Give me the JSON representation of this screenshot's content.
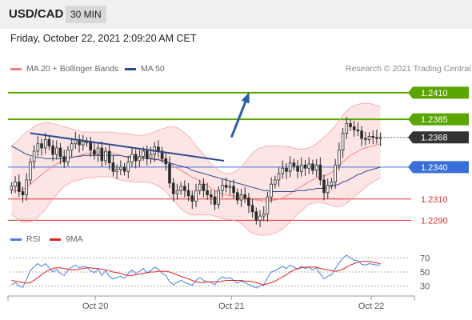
{
  "header": {
    "pair": "USD/CAD",
    "timeframe": "30 MIN"
  },
  "datetime": "Friday, October 22, 2021 2:09:20 AM CET",
  "legend": {
    "bb_label": "MA 20 + Bollinger Bands",
    "ma50_label": "MA 50",
    "rsi_label": "RSI",
    "rsi_ma_label": "9MA",
    "credit": "Research © 2021 Trading Central"
  },
  "colors": {
    "bb": "#f08080",
    "ma50": "#2b4a8a",
    "band_fill": "#fde0e0",
    "green": "#5aa500",
    "blue_level": "#3a6fd8",
    "red_level": "#e03030",
    "candle_up": "#2a2a2a",
    "candle_down": "#2a2a2a",
    "rsi": "#4a7fe0",
    "rsi_ma": "#e02020",
    "arrow": "#2b5fa8",
    "current": "#333333"
  },
  "chart_data": [
    {
      "type": "candlestick",
      "title": "USD/CAD 30 MIN",
      "ylim": [
        1.2282,
        1.2425
      ],
      "x_ticks": [
        "Oct 20",
        "Oct 21",
        "Oct 22"
      ],
      "levels": [
        {
          "value": 1.241,
          "label": "1.2410",
          "kind": "resistance",
          "color": "green",
          "weight": 2
        },
        {
          "value": 1.2385,
          "label": "1.2385",
          "kind": "resistance",
          "color": "green",
          "weight": 2
        },
        {
          "value": 1.2368,
          "label": "1.2368",
          "kind": "current price",
          "color": "current",
          "weight": 1
        },
        {
          "value": 1.234,
          "label": "1.2340",
          "kind": "pivot",
          "color": "blue_level",
          "weight": 1
        },
        {
          "value": 1.231,
          "label": "1.2310",
          "kind": "support",
          "color": "red_level",
          "weight": 1
        },
        {
          "value": 1.229,
          "label": "1.2290",
          "kind": "support",
          "color": "red_level",
          "weight": 1
        }
      ],
      "trendline": {
        "from": [
          0.055,
          1.2372
        ],
        "to": [
          0.575,
          1.2346
        ]
      },
      "forecast_arrow": {
        "from": [
          0.595,
          1.2368
        ],
        "to": [
          0.64,
          1.2408
        ]
      },
      "close": [
        1.2322,
        1.2326,
        1.2317,
        1.2314,
        1.2328,
        1.2345,
        1.2355,
        1.2362,
        1.2358,
        1.2366,
        1.236,
        1.2352,
        1.2358,
        1.235,
        1.2345,
        1.2356,
        1.2362,
        1.2366,
        1.2361,
        1.2364,
        1.2363,
        1.2356,
        1.2352,
        1.2358,
        1.2346,
        1.2355,
        1.2344,
        1.2336,
        1.2338,
        1.234,
        1.2336,
        1.2345,
        1.2352,
        1.2346,
        1.235,
        1.2355,
        1.2348,
        1.2352,
        1.2359,
        1.2355,
        1.2348,
        1.2343,
        1.2325,
        1.2315,
        1.2318,
        1.2322,
        1.2318,
        1.2313,
        1.2308,
        1.2318,
        1.2324,
        1.2318,
        1.2314,
        1.2312,
        1.2305,
        1.2318,
        1.2323,
        1.2321,
        1.2322,
        1.2316,
        1.2309,
        1.2314,
        1.2311,
        1.2304,
        1.2298,
        1.229,
        1.2294,
        1.2296,
        1.2312,
        1.2324,
        1.2328,
        1.2334,
        1.2339,
        1.2336,
        1.2344,
        1.2341,
        1.2336,
        1.2342,
        1.2339,
        1.2343,
        1.2337,
        1.2342,
        1.2328,
        1.2316,
        1.2323,
        1.2326,
        1.2342,
        1.2356,
        1.2372,
        1.2381,
        1.2378,
        1.2375,
        1.2374,
        1.2367,
        1.2366,
        1.2369,
        1.2368,
        1.2367,
        1.2368
      ],
      "ma20": [
        1.2318,
        1.2318,
        1.2318,
        1.2319,
        1.2321,
        1.2324,
        1.2327,
        1.233,
        1.2333,
        1.2336,
        1.2338,
        1.2341,
        1.2343,
        1.2345,
        1.2347,
        1.2348,
        1.2349,
        1.235,
        1.2351,
        1.2352,
        1.2353,
        1.2353,
        1.2354,
        1.2354,
        1.2354,
        1.2354,
        1.2354,
        1.2353,
        1.2352,
        1.2351,
        1.235,
        1.2349,
        1.2349,
        1.2348,
        1.2348,
        1.2348,
        1.2349,
        1.2348,
        1.2348,
        1.2348,
        1.2347,
        1.2346,
        1.2344,
        1.2341,
        1.2339,
        1.2337,
        1.2335,
        1.2333,
        1.233,
        1.2329,
        1.2327,
        1.2325,
        1.2323,
        1.232,
        1.2318,
        1.2316,
        1.2315,
        1.2314,
        1.2313,
        1.2313,
        1.2312,
        1.2311,
        1.2311,
        1.2311,
        1.231,
        1.2309,
        1.2309,
        1.2308,
        1.2308,
        1.2309,
        1.2309,
        1.231,
        1.2311,
        1.2313,
        1.2315,
        1.2318,
        1.232,
        1.2322,
        1.2324,
        1.2326,
        1.2328,
        1.233,
        1.2331,
        1.2332,
        1.2333,
        1.2335,
        1.2338,
        1.2341,
        1.2345,
        1.2348,
        1.2351,
        1.2353,
        1.2355,
        1.2357,
        1.2358,
        1.2359,
        1.236,
        1.2361,
        1.2362
      ],
      "ma50": [
        1.236,
        1.2358,
        1.2356,
        1.2354,
        1.2352,
        1.2351,
        1.235,
        1.2349,
        1.2349,
        1.2348,
        1.2348,
        1.2348,
        1.2348,
        1.2348,
        1.2349,
        1.2349,
        1.2349,
        1.235,
        1.235,
        1.2351,
        1.2351,
        1.2351,
        1.2351,
        1.2351,
        1.2351,
        1.2351,
        1.2351,
        1.2351,
        1.2351,
        1.2351,
        1.235,
        1.235,
        1.235,
        1.2349,
        1.2349,
        1.2349,
        1.2348,
        1.2348,
        1.2347,
        1.2347,
        1.2346,
        1.2345,
        1.2344,
        1.2343,
        1.2342,
        1.2341,
        1.234,
        1.2339,
        1.2337,
        1.2336,
        1.2335,
        1.2334,
        1.2333,
        1.2332,
        1.2331,
        1.233,
        1.2329,
        1.2328,
        1.2327,
        1.2326,
        1.2325,
        1.2324,
        1.2323,
        1.2322,
        1.2321,
        1.232,
        1.2319,
        1.2318,
        1.2318,
        1.2317,
        1.2317,
        1.2317,
        1.2317,
        1.2317,
        1.2317,
        1.2317,
        1.2318,
        1.2318,
        1.2318,
        1.2319,
        1.2319,
        1.232,
        1.232,
        1.232,
        1.2321,
        1.2322,
        1.2323,
        1.2324,
        1.2326,
        1.2327,
        1.2329,
        1.2331,
        1.2333,
        1.2334,
        1.2336,
        1.2337,
        1.2338,
        1.2339,
        1.234
      ],
      "bb_upper": [
        1.236,
        1.2363,
        1.2366,
        1.237,
        1.2373,
        1.2375,
        1.2378,
        1.238,
        1.2381,
        1.2382,
        1.2382,
        1.2381,
        1.238,
        1.2379,
        1.2378,
        1.2377,
        1.2376,
        1.2375,
        1.2374,
        1.2373,
        1.2373,
        1.2373,
        1.2373,
        1.2373,
        1.2373,
        1.2373,
        1.2373,
        1.2373,
        1.2372,
        1.2372,
        1.2372,
        1.2371,
        1.2371,
        1.237,
        1.237,
        1.237,
        1.2371,
        1.2372,
        1.2373,
        1.2375,
        1.2376,
        1.2377,
        1.2378,
        1.2378,
        1.2377,
        1.2375,
        1.2372,
        1.2369,
        1.2365,
        1.236,
        1.2356,
        1.2352,
        1.2347,
        1.2343,
        1.234,
        1.2337,
        1.2335,
        1.2334,
        1.2334,
        1.2335,
        1.2337,
        1.234,
        1.2344,
        1.2349,
        1.2353,
        1.2356,
        1.2358,
        1.2359,
        1.236,
        1.236,
        1.236,
        1.236,
        1.236,
        1.2359,
        1.2359,
        1.2358,
        1.2357,
        1.2357,
        1.2357,
        1.2358,
        1.236,
        1.2362,
        1.2365,
        1.2368,
        1.2371,
        1.2375,
        1.2379,
        1.2384,
        1.2389,
        1.2393,
        1.2396,
        1.2398,
        1.2399,
        1.24,
        1.24,
        1.24,
        1.2399,
        1.2398,
        1.2397
      ],
      "bb_lower": [
        1.2296,
        1.2293,
        1.229,
        1.2288,
        1.2288,
        1.2289,
        1.229,
        1.2293,
        1.2296,
        1.23,
        1.2305,
        1.231,
        1.2314,
        1.2318,
        1.2322,
        1.2324,
        1.2326,
        1.2327,
        1.2328,
        1.2329,
        1.233,
        1.233,
        1.233,
        1.2331,
        1.2331,
        1.2331,
        1.2331,
        1.233,
        1.2329,
        1.2328,
        1.2327,
        1.2327,
        1.2326,
        1.2326,
        1.2326,
        1.2326,
        1.2326,
        1.2325,
        1.2324,
        1.2322,
        1.232,
        1.2317,
        1.2313,
        1.2309,
        1.2305,
        1.2301,
        1.2298,
        1.2296,
        1.2295,
        1.2295,
        1.2295,
        1.2295,
        1.2295,
        1.2295,
        1.2294,
        1.2293,
        1.2292,
        1.2291,
        1.2291,
        1.229,
        1.2289,
        1.2287,
        1.2284,
        1.228,
        1.2278,
        1.2277,
        1.2276,
        1.2276,
        1.2276,
        1.2277,
        1.2278,
        1.228,
        1.2282,
        1.2285,
        1.2288,
        1.2292,
        1.2296,
        1.2299,
        1.2302,
        1.2305,
        1.2306,
        1.2307,
        1.2307,
        1.2306,
        1.2305,
        1.2304,
        1.2303,
        1.2303,
        1.2304,
        1.2306,
        1.2309,
        1.2312,
        1.2315,
        1.2318,
        1.2321,
        1.2324,
        1.2326,
        1.2328,
        1.233
      ]
    },
    {
      "type": "line",
      "title": "RSI",
      "ylim": [
        18,
        82
      ],
      "y_ticks": [
        30,
        50,
        70
      ],
      "series": [
        {
          "name": "RSI",
          "values": [
            32,
            35,
            30,
            28,
            40,
            52,
            58,
            62,
            58,
            62,
            56,
            50,
            54,
            48,
            45,
            53,
            57,
            60,
            56,
            58,
            57,
            52,
            49,
            54,
            45,
            52,
            44,
            40,
            42,
            44,
            41,
            48,
            53,
            48,
            51,
            55,
            49,
            52,
            57,
            54,
            48,
            45,
            36,
            32,
            35,
            38,
            35,
            33,
            31,
            38,
            42,
            38,
            36,
            35,
            32,
            39,
            43,
            41,
            42,
            38,
            34,
            37,
            35,
            32,
            30,
            27,
            30,
            31,
            42,
            50,
            52,
            55,
            58,
            55,
            60,
            57,
            54,
            58,
            55,
            57,
            53,
            56,
            47,
            40,
            44,
            46,
            55,
            63,
            70,
            74,
            70,
            67,
            66,
            61,
            60,
            62,
            61,
            60,
            60
          ]
        },
        {
          "name": "9MA",
          "values": [
            38,
            37,
            36,
            35,
            34,
            35,
            38,
            42,
            46,
            50,
            53,
            55,
            56,
            56,
            55,
            54,
            53,
            53,
            54,
            55,
            56,
            56,
            55,
            55,
            54,
            53,
            52,
            50,
            49,
            48,
            46,
            45,
            45,
            46,
            47,
            48,
            49,
            50,
            50,
            51,
            51,
            51,
            50,
            48,
            46,
            44,
            42,
            40,
            38,
            36,
            35,
            35,
            36,
            36,
            36,
            36,
            37,
            38,
            38,
            38,
            38,
            38,
            37,
            37,
            36,
            35,
            33,
            32,
            33,
            35,
            37,
            40,
            43,
            46,
            50,
            53,
            55,
            56,
            57,
            57,
            57,
            57,
            55,
            54,
            53,
            52,
            51,
            52,
            54,
            57,
            60,
            62,
            64,
            65,
            65,
            65,
            64,
            63,
            62
          ]
        }
      ]
    }
  ]
}
